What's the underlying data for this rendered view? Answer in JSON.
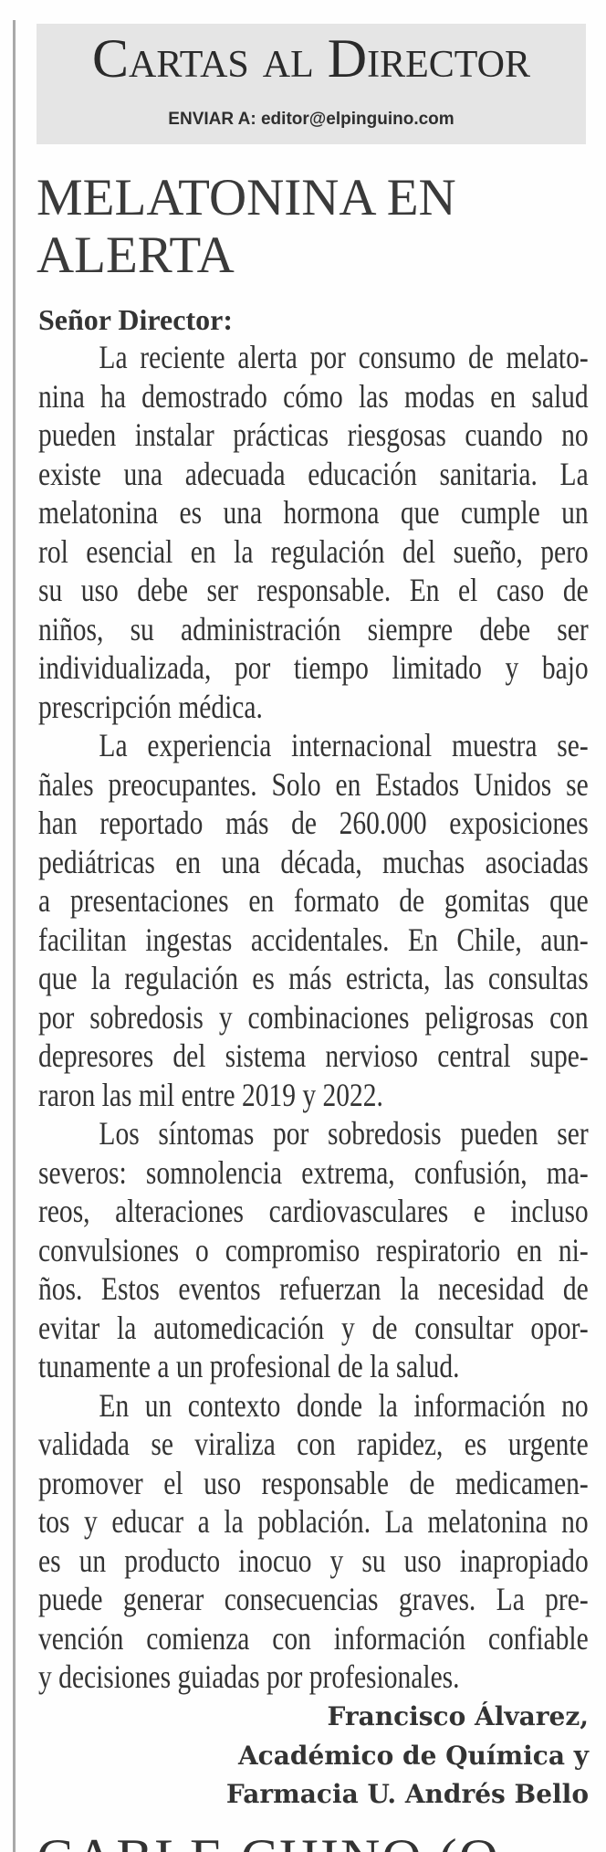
{
  "section": {
    "title": "Cartas al Director",
    "email_line": "ENVIAR A: editor@elpinguino.com"
  },
  "letter": {
    "headline": "MELATONINA EN ALERTA",
    "salutation": "Señor Director:",
    "paragraphs": [
      [
        "La reciente alerta por consumo de melato-",
        "nina ha demostrado cómo las modas en salud",
        "pueden instalar prácticas riesgosas cuando no",
        "existe una adecuada educación sanitaria. La",
        "melatonina es una hormona que cumple un",
        "rol esencial en la regulación del sueño, pero",
        "su uso debe ser responsable. En el caso de",
        "niños, su administración siempre debe ser",
        "individualizada, por tiempo limitado y bajo",
        "prescripción médica."
      ],
      [
        "La experiencia internacional muestra se-",
        "ñales preocupantes. Solo en Estados Unidos se",
        "han reportado más de 260.000 exposiciones",
        "pediátricas en una década, muchas asociadas",
        "a presentaciones en formato de gomitas que",
        "facilitan ingestas accidentales. En Chile, aun-",
        "que la regulación es más estricta, las consultas",
        "por sobredosis y combinaciones peligrosas con",
        "depresores del sistema nervioso central supe-",
        "raron las mil entre 2019 y 2022."
      ],
      [
        "Los síntomas por sobredosis pueden ser",
        "severos: somnolencia extrema, confusión, ma-",
        "reos, alteraciones cardiovasculares e incluso",
        "convulsiones o compromiso respiratorio en ni-",
        "ños. Estos eventos refuerzan la necesidad de",
        "evitar la automedicación y de consultar opor-",
        "tunamente a un profesional de la salud."
      ],
      [
        "En un contexto donde la información no",
        "validada se viraliza con rapidez, es urgente",
        "promover el uso responsable de medicamen-",
        "tos y educar a la población. La melatonina no",
        "es un producto inocuo y su uso inapropiado",
        "puede generar consecuencias graves. La pre-",
        "vención comienza con información confiable",
        "y decisiones guiadas por profesionales."
      ]
    ],
    "signature": [
      "Francisco Álvarez,",
      "Académico de Química y",
      "Farmacia U. Andrés Bello"
    ]
  },
  "next_headline_partial": "CABLE CHINO (O"
}
